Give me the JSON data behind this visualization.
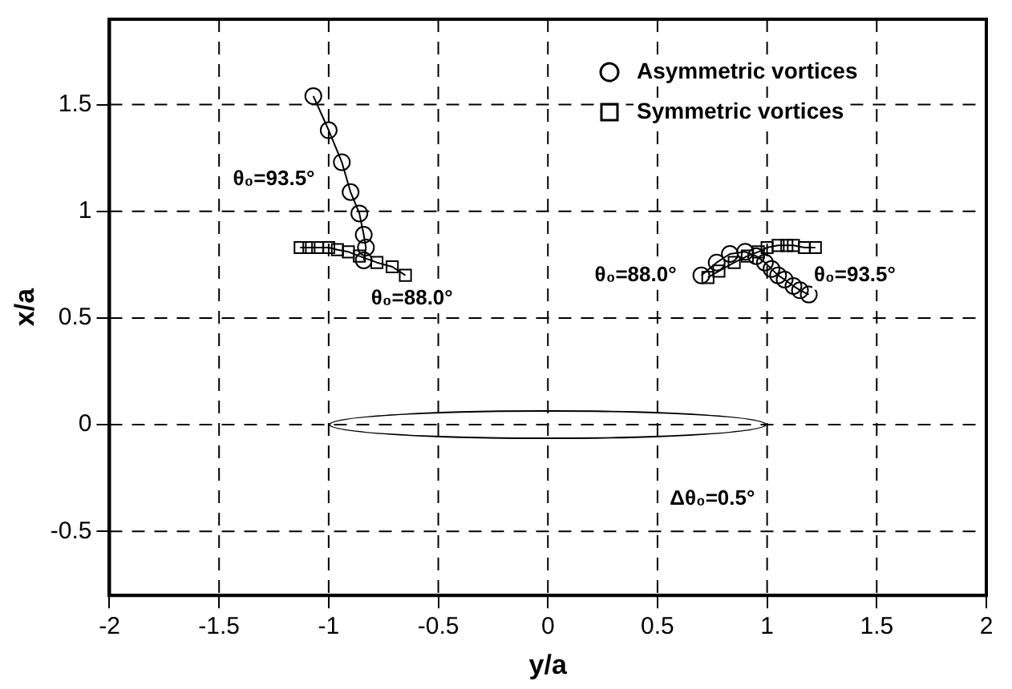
{
  "chart_data": {
    "type": "line",
    "xlabel": "y/a",
    "ylabel": "x/a",
    "xlim": [
      -2,
      2
    ],
    "ylim": [
      -0.8,
      1.9
    ],
    "xticks": [
      -2,
      -1.5,
      -1,
      -0.5,
      0,
      0.5,
      1,
      1.5,
      2
    ],
    "yticks": [
      -0.5,
      0,
      0.5,
      1,
      1.5
    ],
    "grid": true,
    "legend": "top right",
    "line_style": "solid",
    "series": [
      {
        "name": "Asymmetric vortices",
        "color": "#000000",
        "marker": "circle",
        "x": [
          -1.07,
          -1.0,
          -0.94,
          -0.9,
          -0.86,
          -0.84,
          -0.83,
          -0.84,
          0,
          0.7,
          0.77,
          0.83,
          0.9,
          0.95,
          0.99,
          1.02,
          1.05,
          1.08,
          1.12,
          1.15,
          1.19
        ],
        "values": [
          1.54,
          1.38,
          1.23,
          1.09,
          0.99,
          0.89,
          0.83,
          0.77,
          null,
          0.7,
          0.76,
          0.8,
          0.81,
          0.79,
          0.76,
          0.73,
          0.7,
          0.68,
          0.65,
          0.63,
          0.61
        ]
      },
      {
        "name": "Symmetric vortices",
        "color": "#000000",
        "marker": "square",
        "x": [
          -1.13,
          -1.09,
          -1.05,
          -1.0,
          -0.96,
          -0.91,
          -0.86,
          -0.78,
          -0.71,
          -0.65,
          0,
          0.73,
          0.78,
          0.85,
          0.91,
          0.96,
          1.0,
          1.05,
          1.09,
          1.12,
          1.17,
          1.22
        ],
        "values": [
          0.83,
          0.83,
          0.83,
          0.83,
          0.82,
          0.81,
          0.79,
          0.76,
          0.74,
          0.7,
          null,
          0.69,
          0.72,
          0.76,
          0.79,
          0.81,
          0.83,
          0.84,
          0.84,
          0.84,
          0.83,
          0.83
        ]
      }
    ],
    "annotations": [
      "θ₀=93.5°",
      "θ₀=88.0°",
      "θ₀=88.0°",
      "θ₀=93.5°",
      "Δθ₀=0.5°"
    ]
  }
}
